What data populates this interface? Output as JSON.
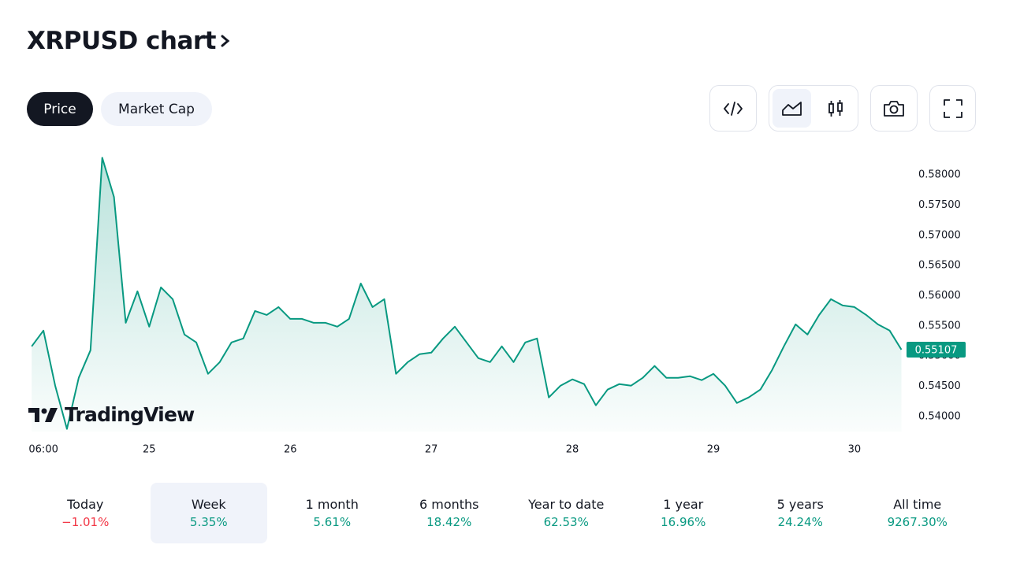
{
  "header": {
    "title": "XRPUSD chart"
  },
  "tabs": [
    "Price",
    "Market Cap"
  ],
  "watermark": "TradingView",
  "chart_data": {
    "type": "line",
    "x": [
      4,
      6,
      8,
      10,
      12,
      14,
      16,
      18,
      20,
      22,
      24,
      26,
      28,
      30,
      32,
      34,
      36,
      38,
      40,
      42,
      44,
      46,
      48,
      50,
      52,
      54,
      56,
      58,
      60,
      62,
      64,
      66,
      68,
      70,
      72,
      74,
      76,
      78,
      80,
      82,
      84,
      86,
      88,
      90,
      92,
      94,
      96,
      98,
      100,
      102,
      104,
      106,
      108,
      110,
      112,
      114,
      116,
      118,
      120,
      122,
      124,
      126,
      128,
      130,
      132,
      134,
      136,
      138,
      140,
      142,
      144,
      146,
      148,
      150,
      152
    ],
    "series": [
      {
        "name": "XRPUSD",
        "color": "#089981",
        "values": [
          0.55161,
          0.55422,
          0.5451,
          0.53794,
          0.54641,
          0.55096,
          0.58286,
          0.57635,
          0.55552,
          0.56073,
          0.55487,
          0.56138,
          0.55943,
          0.55357,
          0.55227,
          0.54706,
          0.54901,
          0.55227,
          0.55292,
          0.55747,
          0.55682,
          0.55812,
          0.55617,
          0.55617,
          0.55552,
          0.55552,
          0.55487,
          0.55617,
          0.56203,
          0.55812,
          0.55943,
          0.54706,
          0.54901,
          0.55031,
          0.55057,
          0.55292,
          0.55487,
          0.55227,
          0.54966,
          0.54901,
          0.55161,
          0.54901,
          0.55227,
          0.55292,
          0.54315,
          0.5451,
          0.54615,
          0.54536,
          0.54185,
          0.54445,
          0.54536,
          0.5451,
          0.54641,
          0.54836,
          0.54641,
          0.54641,
          0.54667,
          0.54602,
          0.54706,
          0.5451,
          0.54224,
          0.54315,
          0.54445,
          0.54771,
          0.55161,
          0.55526,
          0.55357,
          0.55682,
          0.55943,
          0.55839,
          0.55812,
          0.55682,
          0.55526,
          0.55422,
          0.55107
        ]
      }
    ],
    "xlim": [
      3.3,
      152.6
    ],
    "xticks": [
      {
        "value": 6,
        "label": "06:00"
      },
      {
        "value": 24,
        "label": "25"
      },
      {
        "value": 48,
        "label": "26"
      },
      {
        "value": 72,
        "label": "27"
      },
      {
        "value": 96,
        "label": "28"
      },
      {
        "value": 120,
        "label": "29"
      },
      {
        "value": 144,
        "label": "30"
      }
    ],
    "ylim": [
      0.5375,
      0.5842
    ],
    "yticks": [
      {
        "value": 0.54,
        "label": "0.54000"
      },
      {
        "value": 0.545,
        "label": "0.54500"
      },
      {
        "value": 0.55,
        "label": "0.55000"
      },
      {
        "value": 0.555,
        "label": "0.55500"
      },
      {
        "value": 0.56,
        "label": "0.56000"
      },
      {
        "value": 0.565,
        "label": "0.56500"
      },
      {
        "value": 0.57,
        "label": "0.57000"
      },
      {
        "value": 0.575,
        "label": "0.57500"
      },
      {
        "value": 0.58,
        "label": "0.58000"
      }
    ],
    "price_label": {
      "value": 0.55107,
      "label": "0.55107"
    },
    "grid": false
  },
  "periods": [
    {
      "label": "Today",
      "change": "−1.01%"
    },
    {
      "label": "Week",
      "change": "5.35%"
    },
    {
      "label": "1 month",
      "change": "5.61%"
    },
    {
      "label": "6 months",
      "change": "18.42%"
    },
    {
      "label": "Year to date",
      "change": "62.53%"
    },
    {
      "label": "1 year",
      "change": "16.96%"
    },
    {
      "label": "5 years",
      "change": "24.24%"
    },
    {
      "label": "All time",
      "change": "9267.30%"
    }
  ]
}
